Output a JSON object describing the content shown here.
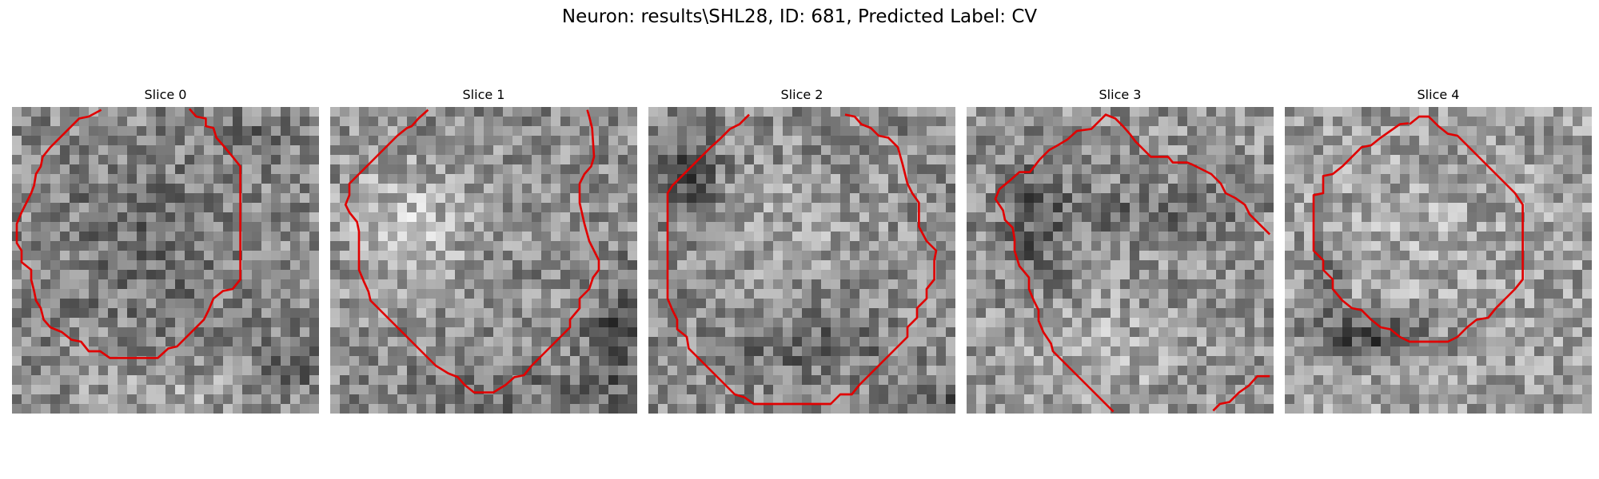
{
  "figure": {
    "title": "Neuron: results\\SHL28, ID: 681, Predicted Label: CV"
  },
  "panels": [
    {
      "title": "Slice 0",
      "image": "grayscale-noise-patch",
      "contour": "red-outline",
      "colors": {
        "contour": "#e00000",
        "min": "#0a0a0a",
        "max": "#f5f5f5"
      }
    },
    {
      "title": "Slice 1",
      "image": "grayscale-noise-patch",
      "contour": "red-outline",
      "colors": {
        "contour": "#e00000",
        "min": "#0a0a0a",
        "max": "#f5f5f5"
      }
    },
    {
      "title": "Slice 2",
      "image": "grayscale-noise-patch",
      "contour": "red-outline",
      "colors": {
        "contour": "#e00000",
        "min": "#0a0a0a",
        "max": "#f5f5f5"
      }
    },
    {
      "title": "Slice 3",
      "image": "grayscale-noise-patch",
      "contour": "red-outline",
      "colors": {
        "contour": "#e00000",
        "min": "#0a0a0a",
        "max": "#f5f5f5"
      }
    },
    {
      "title": "Slice 4",
      "image": "grayscale-noise-patch",
      "contour": "red-outline",
      "colors": {
        "contour": "#e00000",
        "min": "#0a0a0a",
        "max": "#f5f5f5"
      }
    }
  ]
}
